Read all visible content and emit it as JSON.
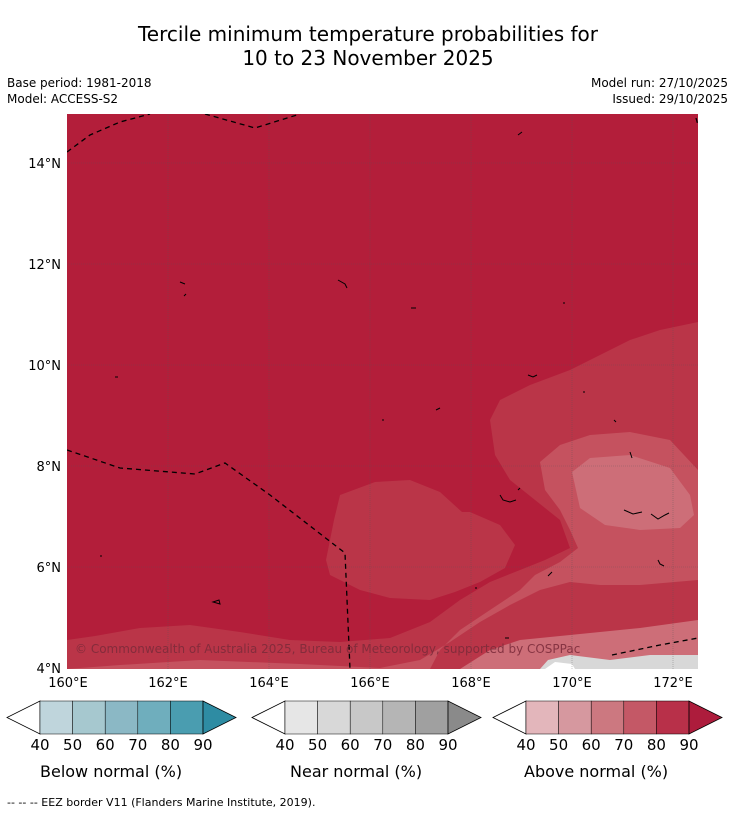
{
  "title_line1": "Tercile minimum temperature probabilities for",
  "title_line2": "10 to 23 November 2025",
  "base_period": "Base period: 1981-2018",
  "model": "Model: ACCESS-S2",
  "model_run": "Model run: 27/10/2025",
  "issued": "Issued: 29/10/2025",
  "copyright": "© Commonwealth of Australia 2025, Bureau of Meteorology, supported by COSPPac",
  "map": {
    "lon_ticks": [
      "160°E",
      "162°E",
      "164°E",
      "166°E",
      "168°E",
      "170°E",
      "172°E"
    ],
    "lat_ticks": [
      "14°N",
      "12°N",
      "10°N",
      "8°N",
      "6°N",
      "4°N"
    ]
  },
  "legends": [
    {
      "label": "Below normal (%)",
      "ticks": [
        "40",
        "50",
        "60",
        "70",
        "80",
        "90"
      ],
      "colors": [
        "#ffffff",
        "#bfd5dc",
        "#a6c8cf",
        "#8bb8c5",
        "#6faebd",
        "#4a9db0",
        "#2e8ca3"
      ]
    },
    {
      "label": "Near normal (%)",
      "ticks": [
        "40",
        "50",
        "60",
        "70",
        "80",
        "90"
      ],
      "colors": [
        "#ffffff",
        "#e6e6e6",
        "#d8d8d8",
        "#c8c8c8",
        "#b5b5b5",
        "#a0a0a0",
        "#8a8a8a"
      ]
    },
    {
      "label": "Above normal (%)",
      "ticks": [
        "40",
        "50",
        "60",
        "70",
        "80",
        "90"
      ],
      "colors": [
        "#ffffff",
        "#e3b6bb",
        "#d6989f",
        "#cc7880",
        "#c45866",
        "#b83049",
        "#ad1c3c"
      ]
    }
  ],
  "footnote": "--  --  -- EEZ border V11 (Flanders Marine Institute, 2019)."
}
